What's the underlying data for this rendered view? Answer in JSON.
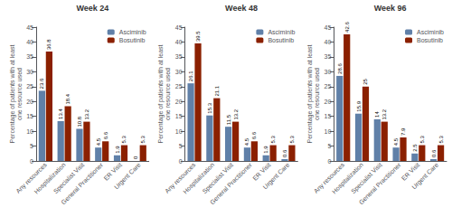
{
  "chart_data": [
    {
      "type": "bar",
      "title": "Week 24",
      "categories": [
        "Any resources",
        "Hospitalization",
        "Specialist Visit",
        "General Practitioner",
        "ER Visit",
        "Urgent Care"
      ],
      "series": [
        {
          "name": "Asciminib",
          "color": "#6080a8",
          "values": [
            23.6,
            13.4,
            10.8,
            4.5,
            1.9,
            0
          ]
        },
        {
          "name": "Bosutinib",
          "color": "#8b2000",
          "values": [
            36.8,
            18.4,
            13.2,
            6.6,
            5.3,
            5.3
          ]
        }
      ],
      "ylabel": "Percentage of patients with at least\none resource used",
      "ylim": [
        0,
        45
      ],
      "yticks": [
        0,
        5,
        10,
        15,
        20,
        25,
        30,
        35,
        40,
        45
      ],
      "data_labels": true,
      "legend": "upper right",
      "grid": false
    },
    {
      "type": "bar",
      "title": "Week 48",
      "categories": [
        "Any resources",
        "Hospitalization",
        "Specialist Visit",
        "General Practitioner",
        "ER Visit",
        "Urgent Care"
      ],
      "series": [
        {
          "name": "Asciminib",
          "color": "#6080a8",
          "values": [
            26.1,
            15.3,
            11.5,
            4.5,
            1.9,
            0.6
          ]
        },
        {
          "name": "Bosutinib",
          "color": "#8b2000",
          "values": [
            39.5,
            21.1,
            13.2,
            6.6,
            5.3,
            5.3
          ]
        }
      ],
      "ylabel": "Percentage of patients with at least\none resource used",
      "ylim": [
        0,
        45
      ],
      "yticks": [
        0,
        5,
        10,
        15,
        20,
        25,
        30,
        35,
        40,
        45
      ],
      "data_labels": true,
      "legend": "upper right",
      "grid": false
    },
    {
      "type": "bar",
      "title": "Week 96",
      "categories": [
        "Any resources",
        "Hospitalization",
        "Specialist Visit",
        "General Practitioner",
        "ER Visit",
        "Urgent Care"
      ],
      "series": [
        {
          "name": "Asciminib",
          "color": "#6080a8",
          "values": [
            28.6,
            15.9,
            14,
            4.5,
            2.5,
            0.6
          ]
        },
        {
          "name": "Bosutinib",
          "color": "#8b2000",
          "values": [
            42.6,
            25,
            13.2,
            7.9,
            5.3,
            5.3
          ]
        }
      ],
      "ylabel": "Percentage of patients with at least\none resource used",
      "ylim": [
        0,
        45
      ],
      "yticks": [
        0,
        5,
        10,
        15,
        20,
        25,
        30,
        35,
        40,
        45
      ],
      "data_labels": true,
      "legend": "upper right",
      "grid": false
    }
  ]
}
